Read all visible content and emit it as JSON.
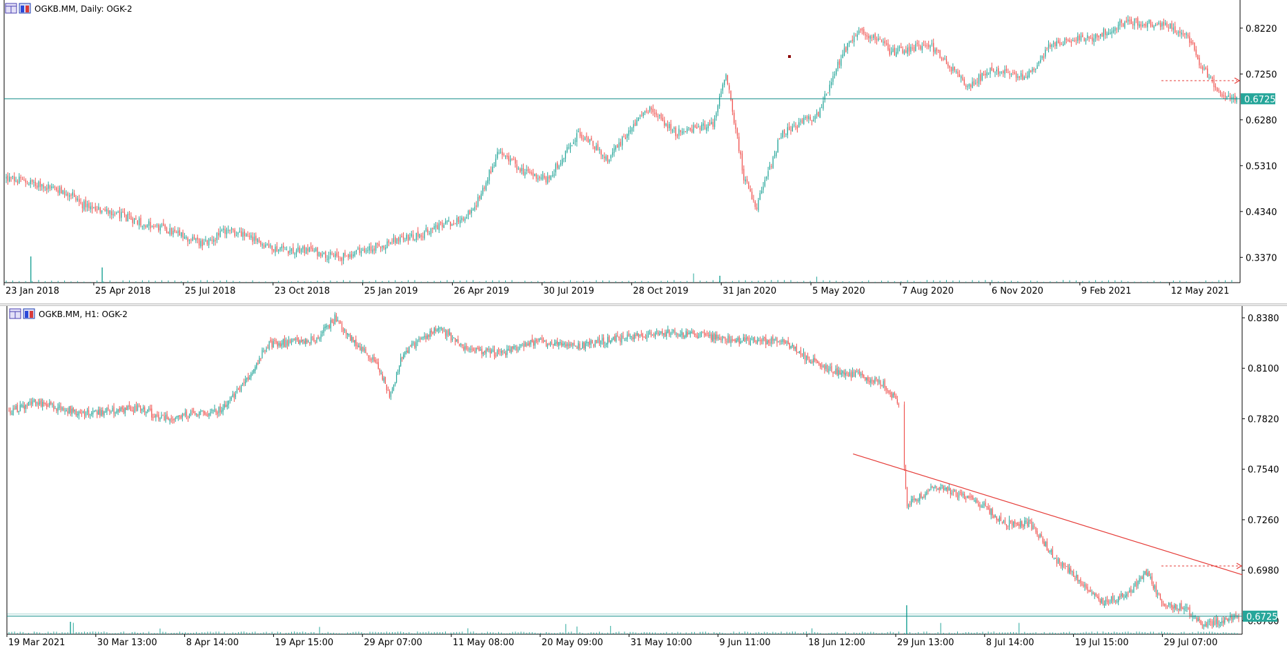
{
  "colors": {
    "bull": "#26a69a",
    "bear": "#ef5350",
    "hline": "#0b8a86",
    "trend": "#e53935",
    "arrow": "#e53935",
    "volume": "#26a69a",
    "frame": "#000000",
    "label_bg": "#26a69a",
    "marker": "#8b0000"
  },
  "top_chart": {
    "header": {
      "symbol": "OGKB.MM",
      "timeframe": "Daily",
      "indicator": "OGK-2",
      "text": "OGKB.MM, Daily:  OGK-2",
      "icon_a": "indicator-list-icon",
      "icon_b": "object-list-icon"
    },
    "price_label": "0.6725",
    "chart_data": {
      "type": "candlestick",
      "price_axis_labels": [
        "0.8220",
        "0.7250",
        "0.6280",
        "0.5310",
        "0.4340",
        "0.3370"
      ],
      "price_axis_values": [
        0.822,
        0.725,
        0.628,
        0.531,
        0.434,
        0.337
      ],
      "ylim": [
        0.2835,
        0.8815
      ],
      "time_axis_labels": [
        "23 Jan 2018",
        "25 Apr 2018",
        "25 Jul 2018",
        "23 Oct 2018",
        "25 Jan 2019",
        "26 Apr 2019",
        "30 Jul 2019",
        "28 Oct 2019",
        "31 Jan 2020",
        "5 May 2020",
        "7 Aug 2020",
        "6 Nov 2020",
        "9 Feb 2021",
        "12 May 2021"
      ],
      "horizontal_line": 0.6725,
      "price_path": [
        [
          0,
          0.505
        ],
        [
          0.03,
          0.49
        ],
        [
          0.055,
          0.47
        ],
        [
          0.06,
          0.45
        ],
        [
          0.1,
          0.42
        ],
        [
          0.13,
          0.395
        ],
        [
          0.16,
          0.365
        ],
        [
          0.18,
          0.395
        ],
        [
          0.22,
          0.355
        ],
        [
          0.25,
          0.35
        ],
        [
          0.27,
          0.335
        ],
        [
          0.3,
          0.36
        ],
        [
          0.33,
          0.38
        ],
        [
          0.36,
          0.41
        ],
        [
          0.38,
          0.435
        ],
        [
          0.4,
          0.56
        ],
        [
          0.42,
          0.52
        ],
        [
          0.44,
          0.5
        ],
        [
          0.465,
          0.6
        ],
        [
          0.49,
          0.545
        ],
        [
          0.52,
          0.655
        ],
        [
          0.545,
          0.6
        ],
        [
          0.575,
          0.62
        ],
        [
          0.585,
          0.73
        ],
        [
          0.6,
          0.5
        ],
        [
          0.61,
          0.445
        ],
        [
          0.63,
          0.6
        ],
        [
          0.66,
          0.64
        ],
        [
          0.68,
          0.77
        ],
        [
          0.695,
          0.82
        ],
        [
          0.72,
          0.77
        ],
        [
          0.75,
          0.79
        ],
        [
          0.78,
          0.7
        ],
        [
          0.8,
          0.73
        ],
        [
          0.83,
          0.72
        ],
        [
          0.85,
          0.79
        ],
        [
          0.88,
          0.8
        ],
        [
          0.91,
          0.835
        ],
        [
          0.94,
          0.83
        ],
        [
          0.96,
          0.81
        ],
        [
          0.97,
          0.745
        ],
        [
          0.99,
          0.675
        ]
      ]
    }
  },
  "bottom_chart": {
    "header": {
      "symbol": "OGKB.MM",
      "timeframe": "H1",
      "indicator": "OGK-2",
      "text": "OGKB.MM, H1:  OGK-2",
      "icon_a": "indicator-list-icon",
      "icon_b": "object-list-icon"
    },
    "price_label": "0.6725",
    "chart_data": {
      "type": "candlestick",
      "price_axis_labels": [
        "0.8380",
        "0.8100",
        "0.7820",
        "0.7540",
        "0.7260",
        "0.6980",
        "0.6700"
      ],
      "price_axis_values": [
        0.838,
        0.81,
        0.782,
        0.754,
        0.726,
        0.698,
        0.67
      ],
      "ylim": [
        0.6625,
        0.8445
      ],
      "time_axis_labels": [
        "19 Mar 2021",
        "30 Mar 13:00",
        "8 Apr 14:00",
        "19 Apr 15:00",
        "29 Apr 07:00",
        "11 May 08:00",
        "20 May 09:00",
        "31 May 10:00",
        "9 Jun 11:00",
        "18 Jun 12:00",
        "29 Jun 13:00",
        "8 Jul 14:00",
        "19 Jul 15:00",
        "29 Jul 07:00"
      ],
      "horizontal_line": 0.6725,
      "price_path": [
        [
          0,
          0.786
        ],
        [
          0.02,
          0.791
        ],
        [
          0.06,
          0.785
        ],
        [
          0.11,
          0.788
        ],
        [
          0.12,
          0.782
        ],
        [
          0.17,
          0.786
        ],
        [
          0.19,
          0.8
        ],
        [
          0.21,
          0.823
        ],
        [
          0.25,
          0.826
        ],
        [
          0.265,
          0.838
        ],
        [
          0.28,
          0.825
        ],
        [
          0.3,
          0.812
        ],
        [
          0.31,
          0.794
        ],
        [
          0.32,
          0.818
        ],
        [
          0.35,
          0.833
        ],
        [
          0.37,
          0.821
        ],
        [
          0.4,
          0.818
        ],
        [
          0.43,
          0.825
        ],
        [
          0.46,
          0.822
        ],
        [
          0.5,
          0.827
        ],
        [
          0.54,
          0.83
        ],
        [
          0.6,
          0.825
        ],
        [
          0.63,
          0.825
        ],
        [
          0.65,
          0.815
        ],
        [
          0.67,
          0.808
        ],
        [
          0.69,
          0.806
        ],
        [
          0.71,
          0.802
        ],
        [
          0.725,
          0.789
        ],
        [
          0.73,
          0.735
        ],
        [
          0.755,
          0.745
        ],
        [
          0.79,
          0.735
        ],
        [
          0.81,
          0.724
        ],
        [
          0.83,
          0.724
        ],
        [
          0.85,
          0.705
        ],
        [
          0.875,
          0.69
        ],
        [
          0.89,
          0.68
        ],
        [
          0.91,
          0.685
        ],
        [
          0.925,
          0.697
        ],
        [
          0.94,
          0.678
        ],
        [
          0.955,
          0.678
        ],
        [
          0.97,
          0.668
        ],
        [
          1,
          0.672
        ]
      ],
      "gap_segments": [
        [
          0.724,
          0.728
        ]
      ],
      "trendline": [
        [
          0.685,
          0.7625
        ],
        [
          1,
          0.6955
        ]
      ]
    }
  }
}
